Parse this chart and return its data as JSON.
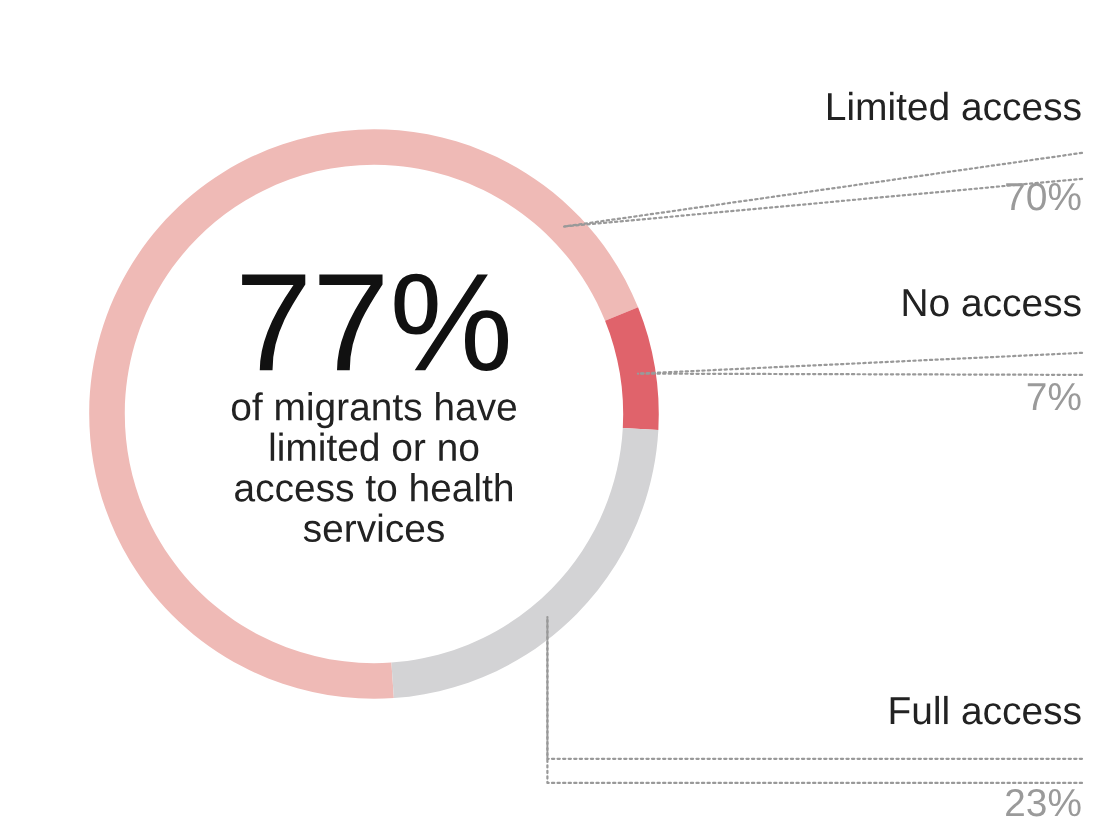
{
  "chart_data": {
    "type": "donut",
    "categories": [
      "Limited access",
      "No access",
      "Full access"
    ],
    "values": [
      70,
      7,
      23
    ],
    "colors": [
      "#efbab6",
      "#e0636b",
      "#d3d3d5"
    ],
    "value_labels": [
      "70%",
      "7%",
      "23%"
    ],
    "annotations": [
      "77%",
      "of migrants have\nlimited or no\naccess to health\nservices"
    ],
    "legend": false
  }
}
